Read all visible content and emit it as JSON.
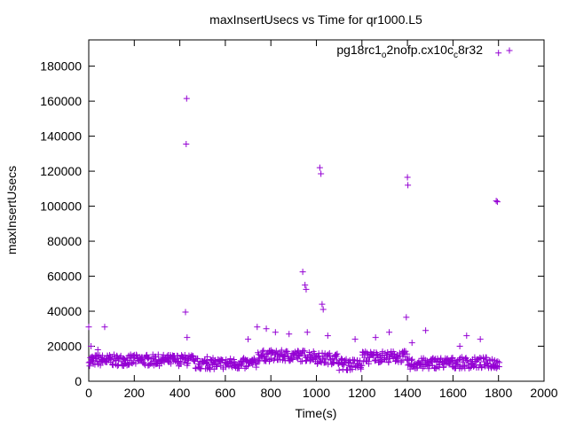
{
  "chart_data": {
    "type": "scatter",
    "title": "maxInsertUsecs vs Time for qr1000.L5",
    "xlabel": "Time(s)",
    "ylabel": "maxInsertUsecs",
    "xlim": [
      0,
      2000
    ],
    "ylim": [
      0,
      195000
    ],
    "xticks": [
      0,
      200,
      400,
      600,
      800,
      1000,
      1200,
      1400,
      1600,
      1800,
      2000
    ],
    "yticks": [
      0,
      20000,
      40000,
      60000,
      80000,
      100000,
      120000,
      140000,
      160000,
      180000
    ],
    "grid": false,
    "legend": {
      "placement": "top-right",
      "label_base": "pg18rc1",
      "label_sub1": "o",
      "label_mid": "2nofp.cx10c",
      "label_sub2": "c",
      "label_tail": "8r32"
    },
    "marker": "+",
    "series": [
      {
        "name": "pg18rc1_o2nofp.cx10c_c8r32",
        "color": "#9400d3",
        "x": [
          0,
          5,
          10,
          15,
          20,
          30,
          40,
          60,
          70,
          80,
          95,
          120,
          150,
          180,
          200,
          230,
          260,
          290,
          320,
          350,
          380,
          410,
          425,
          428,
          430,
          432,
          435,
          440,
          460,
          490,
          520,
          550,
          580,
          610,
          640,
          670,
          700,
          720,
          740,
          760,
          780,
          800,
          820,
          840,
          860,
          880,
          900,
          920,
          940,
          950,
          955,
          960,
          980,
          1000,
          1015,
          1020,
          1025,
          1030,
          1050,
          1080,
          1110,
          1140,
          1170,
          1200,
          1230,
          1260,
          1290,
          1320,
          1350,
          1380,
          1395,
          1400,
          1402,
          1420,
          1450,
          1480,
          1510,
          1540,
          1570,
          1600,
          1630,
          1660,
          1690,
          1720,
          1750,
          1780,
          1790,
          1795,
          1800
        ],
        "y": [
          31000,
          11000,
          20000,
          12000,
          10000,
          13000,
          18000,
          12000,
          31000,
          11000,
          14000,
          12000,
          13000,
          12000,
          15000,
          12000,
          13000,
          14000,
          12000,
          13000,
          12000,
          14000,
          39500,
          135500,
          161500,
          25000,
          12000,
          13000,
          12000,
          11000,
          14000,
          10000,
          9000,
          10000,
          11000,
          9000,
          24000,
          12000,
          31000,
          15000,
          30000,
          16000,
          28000,
          15000,
          14000,
          27000,
          16000,
          15000,
          62500,
          55000,
          52500,
          28000,
          15000,
          14000,
          122000,
          118500,
          44000,
          41000,
          26000,
          14000,
          13000,
          11000,
          24000,
          9000,
          10000,
          25000,
          16000,
          28000,
          14000,
          12000,
          36500,
          116500,
          112000,
          22000,
          11000,
          29000,
          9000,
          8000,
          10000,
          12000,
          20000,
          26000,
          9000,
          24000,
          10000,
          8000,
          103000,
          102500,
          187500
        ]
      }
    ]
  }
}
